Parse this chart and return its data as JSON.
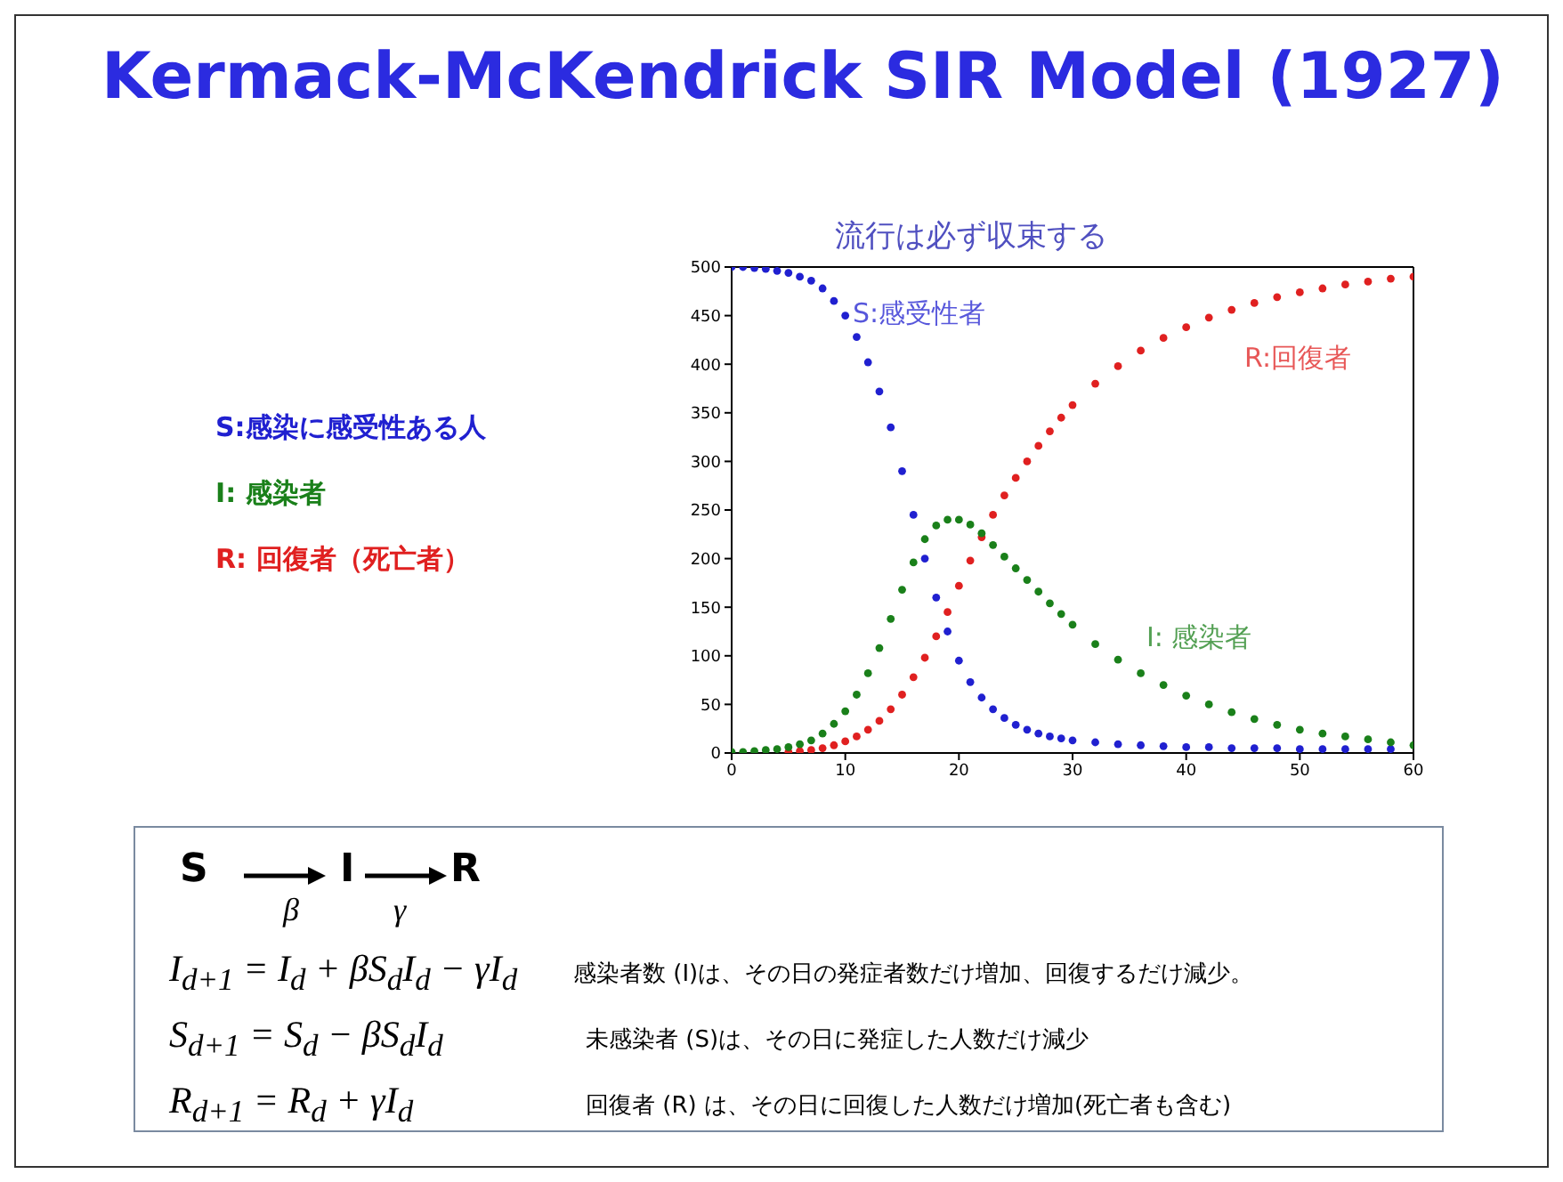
{
  "chart_data": {
    "type": "scatter",
    "title": "Kermack-McKendrick SIR Model (1927)",
    "subtitle": "流行は必ず収束する",
    "x": [
      0,
      1,
      2,
      3,
      4,
      5,
      6,
      7,
      8,
      9,
      10,
      11,
      12,
      13,
      14,
      15,
      16,
      17,
      18,
      19,
      20,
      21,
      22,
      23,
      24,
      25,
      26,
      27,
      28,
      29,
      30,
      32,
      34,
      36,
      38,
      40,
      42,
      44,
      46,
      48,
      50,
      52,
      54,
      56,
      58,
      60
    ],
    "series": [
      {
        "name": "S:感受性者",
        "color": "#2020d0",
        "values": [
          500,
          500,
          499,
          498,
          496,
          494,
          490,
          486,
          478,
          465,
          450,
          428,
          402,
          372,
          335,
          290,
          245,
          200,
          160,
          125,
          95,
          73,
          57,
          45,
          36,
          29,
          24,
          20,
          17,
          15,
          13,
          11,
          9,
          8,
          7,
          6,
          6,
          5,
          5,
          5,
          4,
          4,
          4,
          4,
          4,
          null
        ]
      },
      {
        "name": "I: 感染者",
        "color": "#1a801a",
        "values": [
          1,
          1,
          2,
          3,
          4,
          6,
          9,
          13,
          20,
          30,
          43,
          60,
          82,
          108,
          138,
          168,
          196,
          220,
          234,
          240,
          240,
          235,
          226,
          214,
          202,
          190,
          178,
          166,
          154,
          143,
          132,
          112,
          96,
          82,
          70,
          59,
          50,
          42,
          35,
          29,
          24,
          20,
          17,
          14,
          11,
          8
        ]
      },
      {
        "name": "R:回復者",
        "color": "#e02020",
        "values": [
          null,
          null,
          null,
          null,
          null,
          1,
          2,
          3,
          5,
          8,
          12,
          17,
          24,
          33,
          45,
          60,
          78,
          98,
          120,
          145,
          172,
          198,
          222,
          245,
          265,
          283,
          300,
          316,
          331,
          345,
          358,
          380,
          398,
          414,
          427,
          438,
          448,
          456,
          463,
          469,
          474,
          478,
          482,
          485,
          488,
          490
        ]
      }
    ],
    "xlim": [
      0,
      60
    ],
    "xticks": [
      0,
      10,
      20,
      30,
      40,
      50,
      60
    ],
    "ylim": [
      0,
      500
    ],
    "yticks": [
      0,
      50,
      100,
      150,
      200,
      250,
      300,
      350,
      400,
      450,
      500
    ],
    "marker": "circle",
    "annotations": [
      "S:感染に感受性ある人",
      "I: 感染者",
      "R: 回復者（死亡者）",
      "S",
      "I",
      "R",
      "β",
      "γ",
      "I$_{d+1}$ = I$_{d}$ + βS$_{d}$I$_{d}$ − γI$_{d}$",
      "感染者数 (I)は、その日の発症者数だけ増加、回復するだけ減少。",
      "S$_{d+1}$ = S$_{d}$ − βS$_{d}$I$_{d}$",
      "未感染者 (S)は、その日に発症した人数だけ減少",
      "R$_{d+1}$ = R$_{d}$ + γI$_{d}$",
      "回復者 (R) は、その日に回復した人数だけ増加(死亡者も含む)"
    ]
  }
}
